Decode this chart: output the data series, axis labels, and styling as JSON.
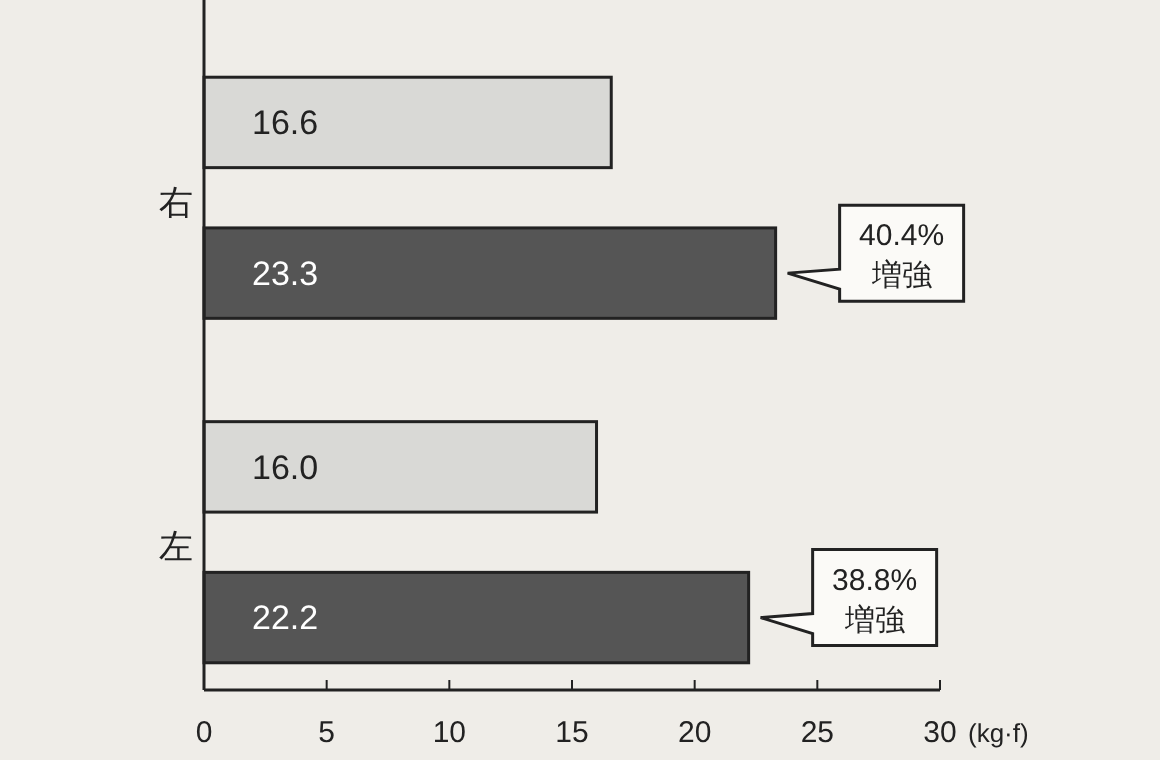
{
  "chart_data": {
    "type": "bar",
    "orientation": "horizontal",
    "categories": [
      "右",
      "左"
    ],
    "series": [
      {
        "color": "#d9d9d6",
        "values": [
          16.6,
          16.0
        ],
        "value_labels": [
          "16.6",
          "16.0"
        ]
      },
      {
        "color": "#555555",
        "values": [
          23.3,
          22.2
        ],
        "value_labels": [
          "23.3",
          "22.2"
        ]
      }
    ],
    "xlim": [
      0,
      30
    ],
    "xticks": [
      0,
      5,
      10,
      15,
      20,
      25,
      30
    ],
    "xlabel": "(kg·f)",
    "annotations": [
      "40.4%\n増強",
      "38.8%\n増強"
    ]
  }
}
